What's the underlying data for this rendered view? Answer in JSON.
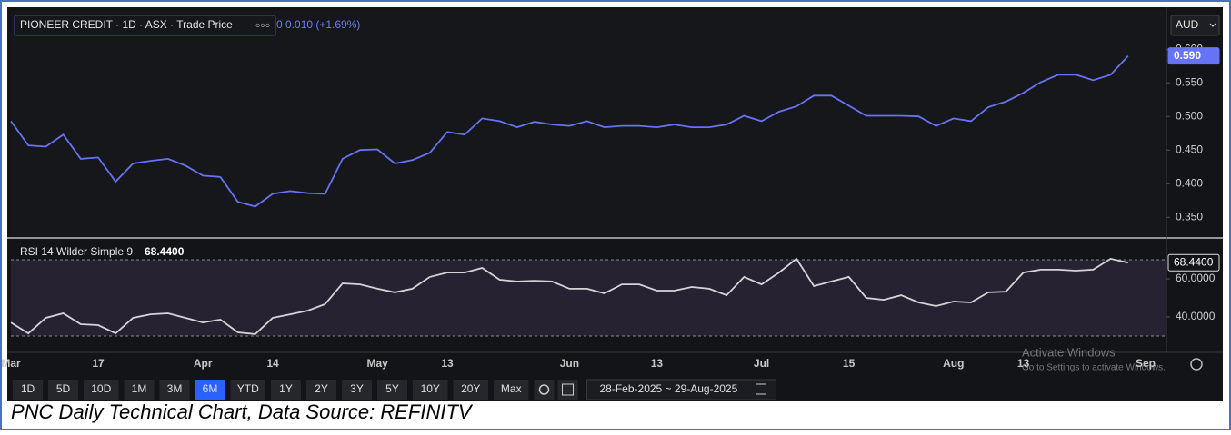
{
  "legend": {
    "instrument": "PIONEER CREDIT · 1D · ASX · Trade Price",
    "dots": "○○○",
    "change": "0 0.010 (+1.69%)"
  },
  "currency": "AUD",
  "chart_data": [
    {
      "type": "line",
      "series": [
        {
          "name": "PIONEER CREDIT · 1D · ASX · Trade Price",
          "color": "#6673f5",
          "values": [
            0.493,
            0.457,
            0.455,
            0.473,
            0.437,
            0.439,
            0.403,
            0.43,
            0.434,
            0.437,
            0.427,
            0.412,
            0.41,
            0.373,
            0.366,
            0.385,
            0.389,
            0.386,
            0.385,
            0.437,
            0.45,
            0.451,
            0.43,
            0.435,
            0.446,
            0.477,
            0.473,
            0.497,
            0.493,
            0.484,
            0.492,
            0.488,
            0.486,
            0.493,
            0.484,
            0.486,
            0.486,
            0.484,
            0.488,
            0.484,
            0.484,
            0.488,
            0.501,
            0.493,
            0.507,
            0.515,
            0.531,
            0.531,
            0.516,
            0.501,
            0.501,
            0.501,
            0.5,
            0.486,
            0.497,
            0.493,
            0.514,
            0.522,
            0.535,
            0.551,
            0.562,
            0.562,
            0.554,
            0.562,
            0.59,
            null
          ]
        }
      ],
      "last_label": "0.590",
      "ylim": [
        0.322,
        0.657
      ],
      "yticks": [
        {
          "value": 0.35,
          "label": "0.350"
        },
        {
          "value": 0.4,
          "label": "0.400"
        },
        {
          "value": 0.45,
          "label": "0.450"
        },
        {
          "value": 0.5,
          "label": "0.500"
        },
        {
          "value": 0.55,
          "label": "0.550"
        },
        {
          "value": 0.6,
          "label": "0.600"
        }
      ]
    },
    {
      "type": "line",
      "title": "RSI 14 Wilder Simple 9",
      "categories": [
        "Mar",
        null,
        null,
        null,
        null,
        "17",
        null,
        null,
        null,
        null,
        null,
        "Apr",
        null,
        null,
        null,
        "14",
        null,
        null,
        null,
        null,
        null,
        "May",
        null,
        null,
        null,
        "13",
        null,
        null,
        null,
        null,
        null,
        null,
        "Jun",
        null,
        null,
        null,
        null,
        "13",
        null,
        null,
        null,
        null,
        null,
        "Jul",
        null,
        null,
        null,
        null,
        "15",
        null,
        null,
        null,
        null,
        null,
        "Aug",
        null,
        null,
        null,
        "13",
        null,
        null,
        null,
        null,
        null,
        null,
        "Sep"
      ],
      "series": [
        {
          "name": "RSI",
          "color": "#d4d4d8",
          "values": [
            37.1,
            31.4,
            39.5,
            41.9,
            36.2,
            35.7,
            31.4,
            39.5,
            41.4,
            41.9,
            39.5,
            37.1,
            38.6,
            31.9,
            31.0,
            39.5,
            41.4,
            43.3,
            46.7,
            57.6,
            57.1,
            54.8,
            52.9,
            54.8,
            61.0,
            63.3,
            63.3,
            65.7,
            59.5,
            58.6,
            59.0,
            58.6,
            54.8,
            54.8,
            52.4,
            57.1,
            57.1,
            53.8,
            53.8,
            55.7,
            54.8,
            51.4,
            61.0,
            57.1,
            63.3,
            70.5,
            56.2,
            58.6,
            61.0,
            50.0,
            49.0,
            51.4,
            47.6,
            45.7,
            48.1,
            47.6,
            52.9,
            53.3,
            63.3,
            64.8,
            64.8,
            64.3,
            64.8,
            70.5,
            68.44,
            null
          ]
        }
      ],
      "last_label": "68.4400",
      "levels": [
        30,
        70
      ],
      "ylim": [
        22.38,
        78.57
      ],
      "yticks": [
        {
          "value": 40,
          "label": "40.0000"
        },
        {
          "value": 60,
          "label": "60.0000"
        }
      ]
    }
  ],
  "toolbar": {
    "ranges": [
      "1D",
      "5D",
      "10D",
      "1M",
      "3M",
      "6M",
      "YTD",
      "1Y",
      "2Y",
      "3Y",
      "5Y",
      "10Y",
      "20Y",
      "Max"
    ],
    "active_index": 5,
    "date_range": "28-Feb-2025 ~ 29-Aug-2025"
  },
  "watermark": {
    "title": "Activate Windows",
    "text": "Go to Settings to activate Windows."
  },
  "caption": "PNC Daily Technical Chart, Data Source: REFINITV"
}
